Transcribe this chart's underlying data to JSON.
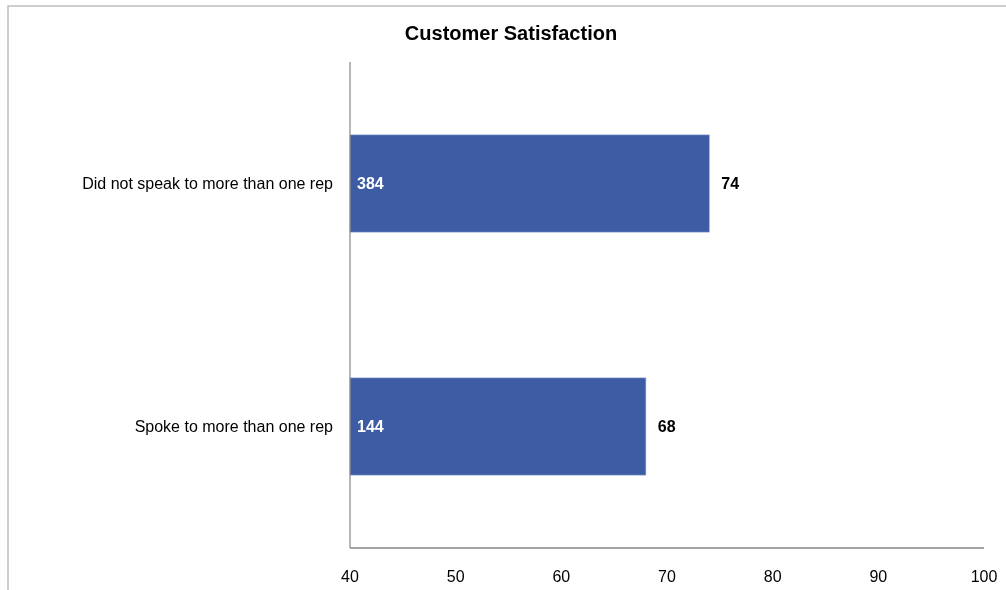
{
  "chart_data": {
    "type": "bar",
    "orientation": "horizontal",
    "title": "Customer Satisfaction",
    "categories": [
      "Did not speak to more than one rep",
      "Spoke to more than one rep"
    ],
    "values": [
      74,
      68
    ],
    "color": "#3d5ca3",
    "xlim": [
      40,
      100
    ],
    "xticks": [
      40,
      50,
      60,
      70,
      80,
      90,
      100
    ],
    "data_labels": true,
    "annotations": [
      "384",
      "144"
    ]
  }
}
